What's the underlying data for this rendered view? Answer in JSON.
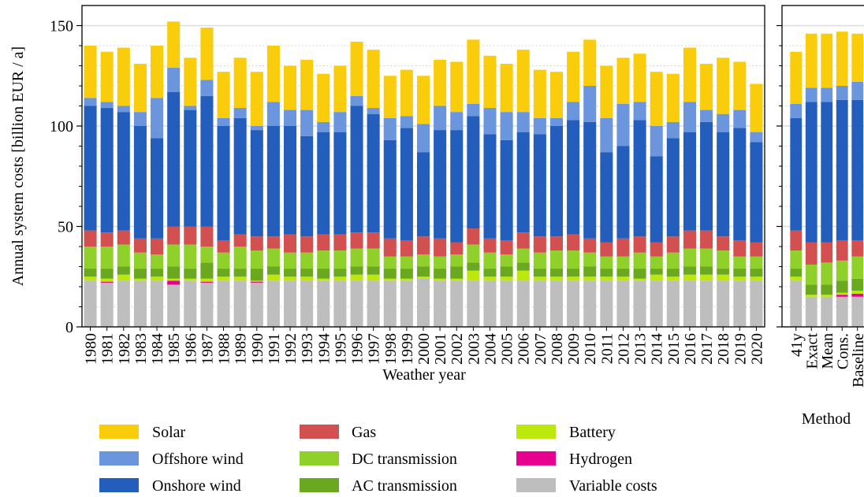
{
  "chart_data": [
    {
      "type": "stacked-bar",
      "xlabel": "Weather year",
      "ylabel": "Annual system costs [billion EUR / a]",
      "categories": [
        "1980",
        "1981",
        "1982",
        "1983",
        "1984",
        "1985",
        "1986",
        "1987",
        "1988",
        "1989",
        "1990",
        "1991",
        "1992",
        "1993",
        "1994",
        "1995",
        "1996",
        "1997",
        "1998",
        "1999",
        "2000",
        "2001",
        "2002",
        "2003",
        "2004",
        "2005",
        "2006",
        "2007",
        "2008",
        "2009",
        "2010",
        "2011",
        "2012",
        "2013",
        "2014",
        "2015",
        "2016",
        "2017",
        "2018",
        "2019",
        "2020"
      ],
      "ylim": [
        0,
        160
      ],
      "yticks": [
        0,
        50,
        100,
        150
      ],
      "yminorticks": [
        10,
        20,
        30,
        40,
        60,
        70,
        80,
        90,
        110,
        120,
        130,
        140
      ],
      "grid": true,
      "series": [
        {
          "name": "Solar",
          "color": "#f9cd0b",
          "values": [
            26,
            25,
            29,
            24,
            26,
            23,
            24,
            26,
            23,
            25,
            27,
            28,
            22,
            25,
            24,
            23,
            27,
            29,
            21,
            23,
            24,
            23,
            25,
            32,
            26,
            24,
            31,
            24,
            23,
            25,
            23,
            26,
            23,
            24,
            27,
            24,
            27,
            23,
            28,
            24,
            24
          ]
        },
        {
          "name": "Offshore wind",
          "color": "#6b95dd",
          "values": [
            4,
            3,
            3,
            7,
            20,
            12,
            2,
            8,
            4,
            5,
            2,
            12,
            8,
            13,
            5,
            10,
            5,
            3,
            11,
            6,
            14,
            12,
            9,
            6,
            13,
            14,
            10,
            8,
            4,
            9,
            18,
            17,
            21,
            9,
            15,
            8,
            15,
            6,
            9,
            9,
            5
          ]
        },
        {
          "name": "Onshore wind",
          "color": "#235ebc",
          "values": [
            62,
            62,
            59,
            56,
            50,
            67,
            58,
            65,
            57,
            58,
            53,
            55,
            54,
            50,
            51,
            51,
            63,
            59,
            49,
            56,
            42,
            54,
            56,
            56,
            52,
            50,
            50,
            51,
            55,
            57,
            58,
            45,
            46,
            58,
            43,
            49,
            49,
            54,
            52,
            56,
            50
          ]
        },
        {
          "name": "Gas",
          "color": "#d35050",
          "values": [
            8,
            7,
            7,
            7,
            8,
            9,
            9,
            10,
            6,
            6,
            7,
            6,
            9,
            8,
            8,
            8,
            8,
            8,
            9,
            8,
            9,
            9,
            6,
            8,
            7,
            7,
            8,
            8,
            7,
            8,
            7,
            7,
            9,
            8,
            7,
            8,
            9,
            9,
            7,
            8,
            7
          ]
        },
        {
          "name": "DC transmission",
          "color": "#8fd12a",
          "values": [
            11,
            11,
            11,
            8,
            7,
            11,
            12,
            8,
            8,
            11,
            9,
            9,
            8,
            8,
            9,
            9,
            9,
            9,
            6,
            6,
            6,
            6,
            6,
            9,
            8,
            6,
            7,
            8,
            9,
            9,
            7,
            6,
            6,
            8,
            6,
            8,
            9,
            9,
            9,
            6,
            6
          ]
        },
        {
          "name": "AC transmission",
          "color": "#6aa820",
          "values": [
            4,
            5,
            4,
            5,
            4,
            6,
            5,
            8,
            4,
            4,
            6,
            4,
            4,
            4,
            5,
            4,
            4,
            4,
            5,
            5,
            5,
            5,
            6,
            4,
            4,
            5,
            4,
            4,
            4,
            4,
            5,
            4,
            4,
            5,
            3,
            4,
            4,
            4,
            3,
            4,
            4
          ]
        },
        {
          "name": "Battery",
          "color": "#bce80d",
          "values": [
            2,
            1.5,
            3,
            1,
            2,
            1,
            1,
            1.5,
            2,
            2,
            0.5,
            3,
            2,
            2,
            1,
            2,
            3,
            3,
            1,
            1,
            1,
            1,
            1,
            5,
            2,
            2,
            5,
            2,
            2,
            2,
            2,
            2,
            2,
            1,
            3,
            2,
            3,
            3,
            3,
            2,
            2
          ]
        },
        {
          "name": "Hydrogen",
          "color": "#e8008f",
          "values": [
            0,
            0.5,
            0,
            0,
            0,
            2,
            0,
            0.5,
            0,
            0,
            0.5,
            0,
            0,
            0,
            0,
            0,
            0,
            0,
            0,
            0,
            0,
            0,
            0,
            0,
            0,
            0,
            0,
            0,
            0,
            0,
            0,
            0,
            0,
            0,
            0,
            0,
            0,
            0,
            0,
            0,
            0
          ]
        },
        {
          "name": "Variable costs",
          "color": "#bebebe",
          "values": [
            23,
            22,
            23,
            23,
            23,
            21,
            23,
            22,
            23,
            23,
            22,
            23,
            23,
            23,
            23,
            23,
            23,
            23,
            23,
            23,
            24,
            23,
            23,
            23,
            23,
            23,
            23,
            23,
            23,
            23,
            23,
            23,
            23,
            23,
            23,
            23,
            23,
            23,
            23,
            23,
            23
          ]
        }
      ]
    },
    {
      "type": "stacked-bar",
      "xlabel": "Method",
      "categories": [
        "41y",
        "Exact",
        "Mean",
        "Cons.",
        "Baseline"
      ],
      "ylim": [
        0,
        160
      ],
      "yticks": [
        0,
        50,
        100,
        150
      ],
      "yminorticks": [
        10,
        20,
        30,
        40,
        60,
        70,
        80,
        90,
        110,
        120,
        130,
        140
      ],
      "grid": true,
      "series": [
        {
          "color": "#f9cd0b",
          "values": [
            26,
            27,
            27,
            27,
            24
          ]
        },
        {
          "color": "#6b95dd",
          "values": [
            7,
            7,
            7,
            7,
            9
          ]
        },
        {
          "color": "#235ebc",
          "values": [
            56,
            70,
            70,
            70,
            70
          ]
        },
        {
          "color": "#d35050",
          "values": [
            10,
            11,
            10,
            10,
            8
          ]
        },
        {
          "color": "#8fd12a",
          "values": [
            9,
            10,
            11,
            10,
            11
          ]
        },
        {
          "color": "#6aa820",
          "values": [
            4,
            5,
            5,
            6,
            6
          ]
        },
        {
          "color": "#bce80d",
          "values": [
            2,
            1,
            1,
            1,
            1.5
          ]
        },
        {
          "color": "#e8008f",
          "values": [
            0,
            0,
            0,
            1,
            1.5
          ]
        },
        {
          "color": "#bebebe",
          "values": [
            23,
            15,
            15,
            15,
            15
          ]
        }
      ]
    }
  ]
}
